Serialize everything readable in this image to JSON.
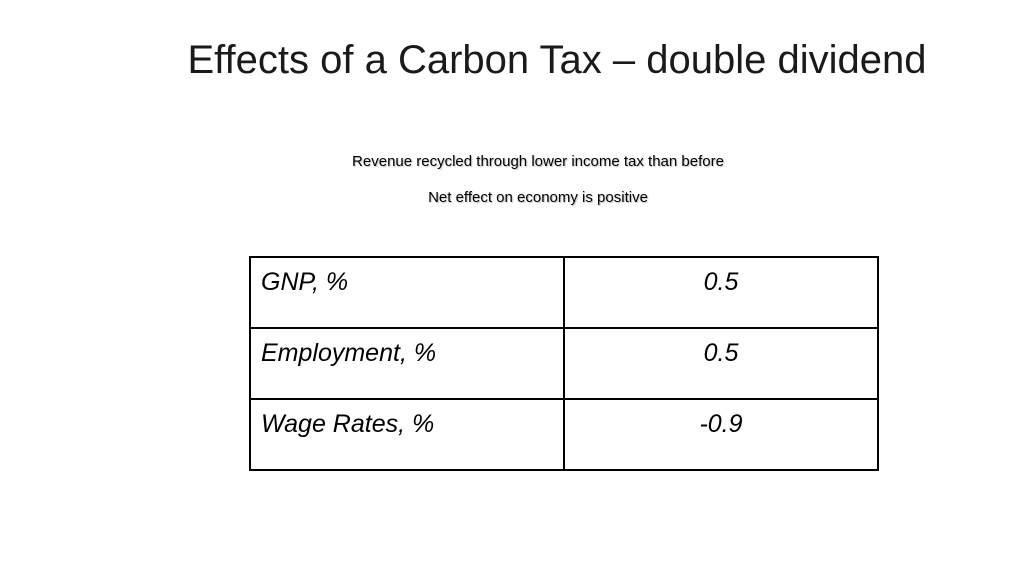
{
  "slide": {
    "title": "Effects of a Carbon Tax – double dividend",
    "subtitle_lines": [
      "Revenue recycled through lower income tax than before",
      "Net effect on economy is positive"
    ]
  },
  "table": {
    "rows": [
      {
        "label": "GNP, %",
        "value": "0.5"
      },
      {
        "label": "Employment, %",
        "value": "0.5"
      },
      {
        "label": "Wage Rates, %",
        "value": "-0.9"
      }
    ]
  }
}
